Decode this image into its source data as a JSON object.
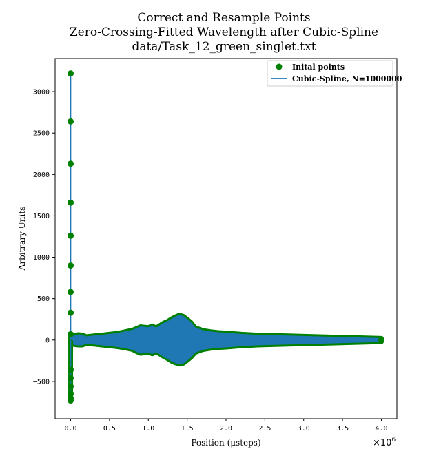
{
  "chart_data": {
    "type": "line",
    "title_lines": [
      "Correct and Resample Points",
      "Zero-Crossing-Fitted Wavelength after Cubic-Spline",
      "data/Task_12_green_singlet.txt"
    ],
    "xlabel": "Position (μsteps)",
    "ylabel": "Arbitrary Units",
    "x_offset_label": "×10",
    "x_offset_exponent": "6",
    "xlim": [
      -0.2,
      4.2
    ],
    "ylim": [
      -950,
      3400
    ],
    "x_ticks": [
      0.0,
      0.5,
      1.0,
      1.5,
      2.0,
      2.5,
      3.0,
      3.5,
      4.0
    ],
    "x_tick_labels": [
      "0.0",
      "0.5",
      "1.0",
      "1.5",
      "2.0",
      "2.5",
      "3.0",
      "3.5",
      "4.0"
    ],
    "y_ticks": [
      -500,
      0,
      500,
      1000,
      1500,
      2000,
      2500,
      3000
    ],
    "y_tick_labels": [
      "−500",
      "0",
      "500",
      "1000",
      "1500",
      "2000",
      "2500",
      "3000"
    ],
    "legend": {
      "placement": "upper-right",
      "entries": [
        "Inital points",
        "Cubic-Spline, N=1000000"
      ]
    },
    "colors": {
      "points": "#008000",
      "spline": "#1f77b4"
    },
    "spike_points": {
      "x": 0.0,
      "y": [
        3220,
        2640,
        2130,
        1660,
        1260,
        900,
        580,
        330,
        70,
        -360,
        -460,
        -560,
        -650,
        -700,
        -730
      ]
    },
    "envelope": {
      "x": [
        0.0,
        0.02,
        0.05,
        0.1,
        0.15,
        0.2,
        0.3,
        0.4,
        0.5,
        0.6,
        0.7,
        0.8,
        0.85,
        0.9,
        1.0,
        1.05,
        1.1,
        1.15,
        1.2,
        1.25,
        1.3,
        1.35,
        1.4,
        1.45,
        1.5,
        1.55,
        1.6,
        1.7,
        1.8,
        1.9,
        2.0,
        2.2,
        2.4,
        2.6,
        2.8,
        3.0,
        3.2,
        3.4,
        3.6,
        3.8,
        4.0
      ],
      "upper": [
        40,
        45,
        55,
        65,
        60,
        40,
        50,
        60,
        70,
        80,
        100,
        120,
        140,
        160,
        150,
        170,
        145,
        175,
        205,
        225,
        255,
        280,
        300,
        285,
        250,
        210,
        150,
        115,
        100,
        90,
        85,
        70,
        60,
        55,
        50,
        45,
        40,
        35,
        30,
        25,
        20
      ],
      "lower": [
        -40,
        -45,
        -55,
        -60,
        -60,
        -40,
        -50,
        -60,
        -70,
        -80,
        -95,
        -115,
        -140,
        -160,
        -150,
        -165,
        -145,
        -170,
        -200,
        -225,
        -255,
        -275,
        -290,
        -280,
        -245,
        -205,
        -150,
        -115,
        -100,
        -90,
        -85,
        -70,
        -60,
        -55,
        -50,
        -45,
        -40,
        -35,
        -30,
        -25,
        -20
      ]
    }
  }
}
